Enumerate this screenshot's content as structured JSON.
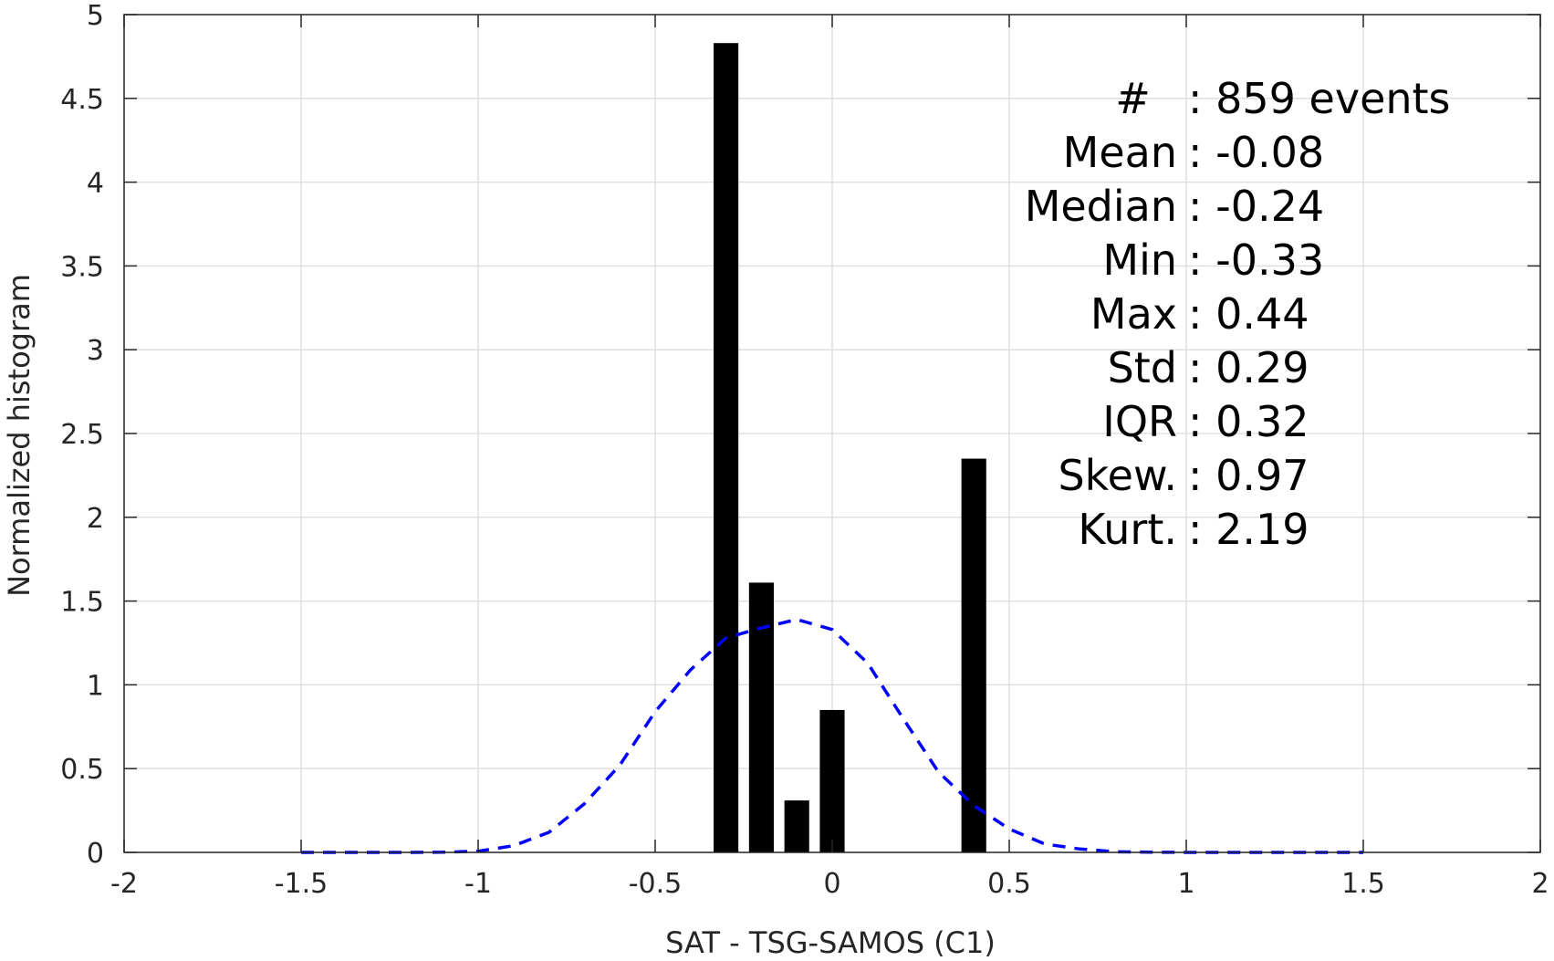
{
  "chart_data": {
    "type": "bar",
    "xlabel": "SAT - TSG-SAMOS (C1)",
    "ylabel": "Normalized histogram",
    "xlim": [
      -2,
      2
    ],
    "ylim": [
      0,
      5
    ],
    "x_ticks": [
      -2,
      -1.5,
      -1,
      -0.5,
      0,
      0.5,
      1,
      1.5,
      2
    ],
    "x_tick_labels": [
      "-2",
      "-1.5",
      "-1",
      "-0.5",
      "0",
      "0.5",
      "1",
      "1.5",
      "2"
    ],
    "y_ticks": [
      0,
      0.5,
      1,
      1.5,
      2,
      2.5,
      3,
      3.5,
      4,
      4.5,
      5
    ],
    "y_tick_labels": [
      "0",
      "0.5",
      "1",
      "1.5",
      "2",
      "2.5",
      "3",
      "3.5",
      "4",
      "4.5",
      "5"
    ],
    "grid": true,
    "bar_width": 0.07,
    "bars": [
      {
        "x": -0.3,
        "y": 4.83
      },
      {
        "x": -0.2,
        "y": 1.61
      },
      {
        "x": -0.1,
        "y": 0.31
      },
      {
        "x": 0.0,
        "y": 0.85
      },
      {
        "x": 0.4,
        "y": 2.35
      }
    ],
    "fit_curve": {
      "style": "dashed",
      "color": "#0000ff",
      "x": [
        -1.5,
        -1.4,
        -1.3,
        -1.2,
        -1.1,
        -1.0,
        -0.9,
        -0.8,
        -0.7,
        -0.6,
        -0.5,
        -0.4,
        -0.3,
        -0.2,
        -0.1,
        0.0,
        0.1,
        0.2,
        0.3,
        0.4,
        0.5,
        0.6,
        0.7,
        0.8,
        0.9,
        1.0,
        1.1,
        1.2,
        1.3,
        1.4,
        1.5
      ],
      "y": [
        0,
        0,
        0,
        0,
        0.001,
        0.007,
        0.04,
        0.12,
        0.29,
        0.52,
        0.84,
        1.09,
        1.28,
        1.34,
        1.39,
        1.33,
        1.13,
        0.8,
        0.48,
        0.28,
        0.14,
        0.05,
        0.02,
        0.004,
        0.001,
        0,
        0,
        0,
        0,
        0,
        0
      ]
    },
    "bar_color": "#000000",
    "stats": [
      {
        "label": "#  ",
        "value": ": 859 events"
      },
      {
        "label": "Mean",
        "value": ": -0.08"
      },
      {
        "label": "Median",
        "value": ": -0.24"
      },
      {
        "label": "Min",
        "value": ": -0.33"
      },
      {
        "label": "Max",
        "value": ": 0.44"
      },
      {
        "label": "Std",
        "value": ": 0.29"
      },
      {
        "label": "IQR",
        "value": ": 0.32"
      },
      {
        "label": "Skew.",
        "value": ": 0.97"
      },
      {
        "label": "Kurt.",
        "value": ": 2.19"
      }
    ]
  }
}
